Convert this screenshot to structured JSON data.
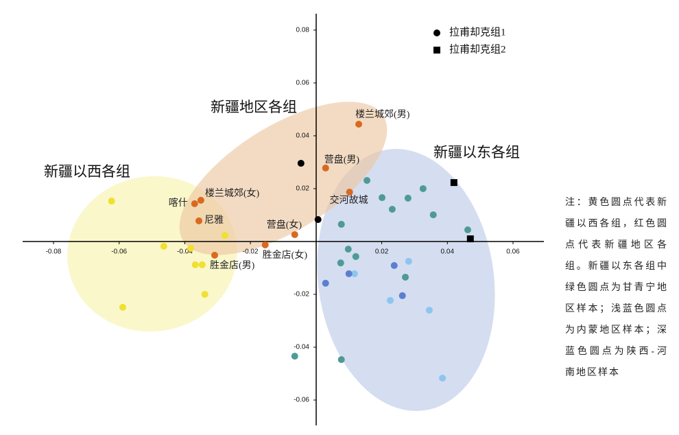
{
  "chart_data": {
    "type": "scatter",
    "xlim": [
      -0.0894,
      0.0694
    ],
    "ylim": [
      -0.0696,
      0.0862
    ],
    "xticks": [
      -0.08,
      -0.06,
      -0.04,
      -0.02,
      0.02,
      0.04,
      0.06
    ],
    "yticks": [
      -0.06,
      -0.04,
      -0.02,
      0.02,
      0.04,
      0.06,
      0.08
    ],
    "annotations": [
      "新疆以西各组",
      "新疆地区各组",
      "新疆以东各组"
    ],
    "note": "注：黄色圆点代表新疆以西各组，红色圆点代表新疆地区各组。新疆以东各组中绿色圆点为甘青宁地区样本；浅蓝色圆点为内蒙地区样本；深蓝色圆点为陕西-河南地区样本",
    "series": [
      {
        "color": "#f0e030",
        "marker": "circle",
        "x": [
          -0.0623,
          -0.0589,
          -0.0464,
          -0.0382,
          -0.0368,
          -0.0347,
          -0.0339,
          -0.0278
        ],
        "y": [
          0.0153,
          -0.0249,
          -0.0018,
          -0.0026,
          -0.0088,
          -0.0088,
          -0.02,
          0.0023
        ]
      },
      {
        "color": "#d9691f",
        "marker": "circle",
        "x": [
          -0.037,
          -0.0351,
          -0.0357,
          -0.0309,
          -0.0155,
          -0.0065,
          0.0029,
          0.0102,
          0.013
        ],
        "y": [
          0.0143,
          0.0156,
          0.0078,
          -0.0052,
          -0.0013,
          0.0026,
          0.0278,
          0.0187,
          0.0444
        ],
        "labels": [
          "喀什",
          "楼兰城郊(女)",
          "尼雅",
          "胜金店(男)",
          "胜金店(女)",
          "营盘(女)",
          "营盘(男)",
          "交河故城",
          "楼兰城郊(男)"
        ]
      },
      {
        "color": "#4e9a96",
        "marker": "circle",
        "x": [
          0.0155,
          0.0201,
          0.0232,
          0.028,
          0.0326,
          0.0357,
          0.0462,
          0.0077,
          0.0098,
          0.0075,
          0.0121,
          0.0272,
          -0.0065,
          0.0077
        ],
        "y": [
          0.0231,
          0.0166,
          0.0122,
          0.0164,
          0.02,
          0.0101,
          0.0044,
          0.0065,
          -0.0029,
          -0.0081,
          -0.0057,
          -0.0135,
          -0.0434,
          -0.0447
        ]
      },
      {
        "color": "#8ec5ee",
        "marker": "circle",
        "x": [
          0.0282,
          0.0117,
          0.0226,
          0.0345,
          0.0385
        ],
        "y": [
          -0.0075,
          -0.0122,
          -0.0223,
          -0.026,
          -0.0517
        ]
      },
      {
        "color": "#5b7fd0",
        "marker": "circle",
        "x": [
          0.0029,
          0.01,
          0.0238,
          0.0263
        ],
        "y": [
          -0.0158,
          -0.0122,
          -0.0091,
          -0.0205
        ]
      },
      {
        "name": "拉甫却克组1",
        "color": "#000000",
        "marker": "circle",
        "x": [
          -0.0046,
          0.0006
        ],
        "y": [
          0.0296,
          0.0083
        ]
      },
      {
        "name": "拉甫却克组2",
        "color": "#000000",
        "marker": "square",
        "x": [
          0.042,
          0.047
        ],
        "y": [
          0.0223,
          0.001
        ]
      }
    ]
  }
}
